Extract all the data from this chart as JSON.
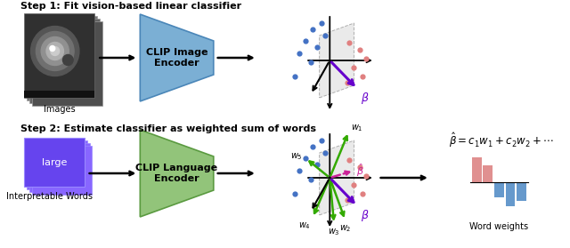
{
  "title_step1": "Step 1: Fit vision-based linear classifier",
  "title_step2": "Step 2: Estimate classifier as weighted sum of words",
  "clip_image_label": "CLIP Image\nEncoder",
  "clip_language_label": "CLIP Language\nEncoder",
  "images_label": "Images",
  "words_label": "Interpretable Words",
  "word_weights_label": "Word weights",
  "beta_hat_eq": "$\\hat{\\beta} = c_1w_1 + c_2w_2 + \\cdots$",
  "blue_dot_color": "#4472C4",
  "pink_dot_color": "#E08080",
  "clip_image_color": "#7BAFD4",
  "clip_image_edge": "#4A86B8",
  "clip_language_color": "#92C47A",
  "clip_language_edge": "#5A9A40",
  "word_box_color": "#6644EE",
  "word_box_color2": "#8866FF",
  "word_box_text": "large",
  "bar_positive_color": "#E09090",
  "bar_negative_color": "#6699CC",
  "bar_heights": [
    0.75,
    0.5,
    -0.45,
    -0.7,
    -0.55
  ],
  "background_color": "#ffffff"
}
